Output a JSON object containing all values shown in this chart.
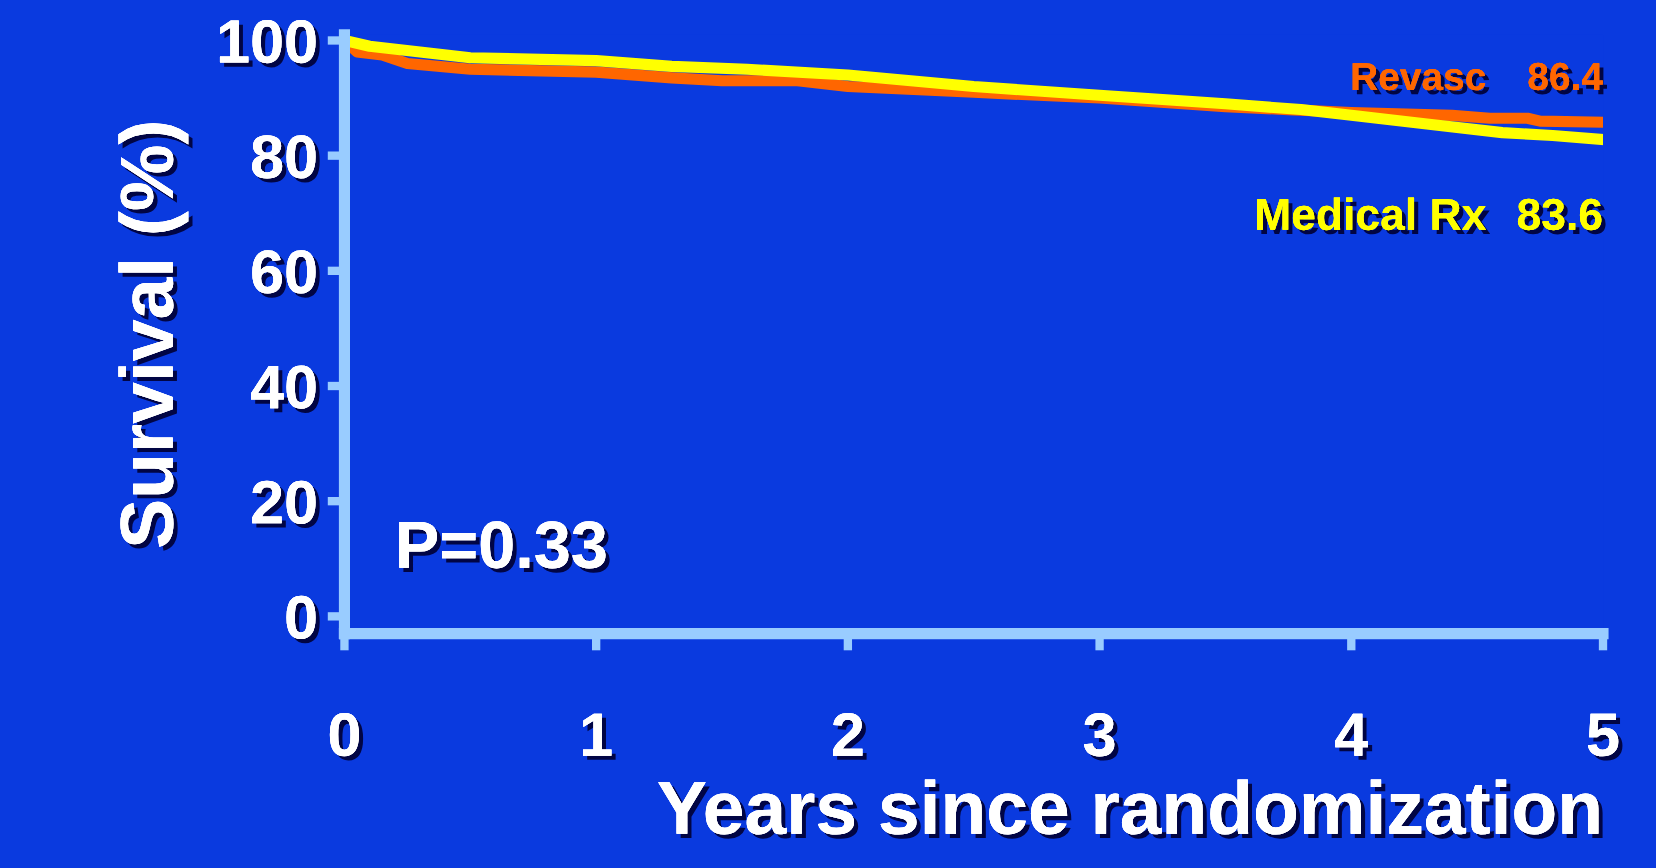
{
  "chart_data": {
    "type": "line",
    "xlabel": "Years since randomization",
    "ylabel": "Survival (%)",
    "xlim": [
      0,
      5
    ],
    "xticks": [
      0,
      1,
      2,
      3,
      4,
      5
    ],
    "ylim": [
      -3,
      101
    ],
    "yticks": [
      0,
      20,
      40,
      60,
      80,
      100
    ],
    "grid": false,
    "legend": false,
    "series": [
      {
        "name": "Revasc",
        "color": "#ff6600",
        "x": [
          0,
          0.05,
          0.15,
          0.25,
          0.5,
          1.0,
          1.3,
          1.5,
          1.8,
          2.0,
          2.5,
          3.0,
          3.5,
          3.75,
          4.0,
          4.4,
          4.55,
          4.7,
          4.75,
          5.0
        ],
        "values": [
          100,
          98,
          97.5,
          96,
          95,
          94.5,
          93.5,
          93,
          93,
          92,
          91,
          90,
          88.5,
          88,
          87.5,
          87,
          86.5,
          86.5,
          86,
          85.8
        ]
      },
      {
        "name": "Medical Rx",
        "color": "#ffff00",
        "x": [
          0,
          0.1,
          0.3,
          0.5,
          1.0,
          1.3,
          1.6,
          2.0,
          2.5,
          3.0,
          3.5,
          3.8,
          4.0,
          4.3,
          4.6,
          4.8,
          5.0
        ],
        "values": [
          100,
          99,
          98,
          97,
          96.5,
          95.5,
          95,
          94,
          92,
          90.5,
          89,
          88,
          87,
          85.5,
          84,
          83.5,
          82.8
        ]
      }
    ],
    "annotations": [
      {
        "text": "86.4",
        "x": 5,
        "y": 86.4
      },
      {
        "text": "83.6",
        "x": 5,
        "y": 83.6
      },
      "P=0.33"
    ]
  }
}
